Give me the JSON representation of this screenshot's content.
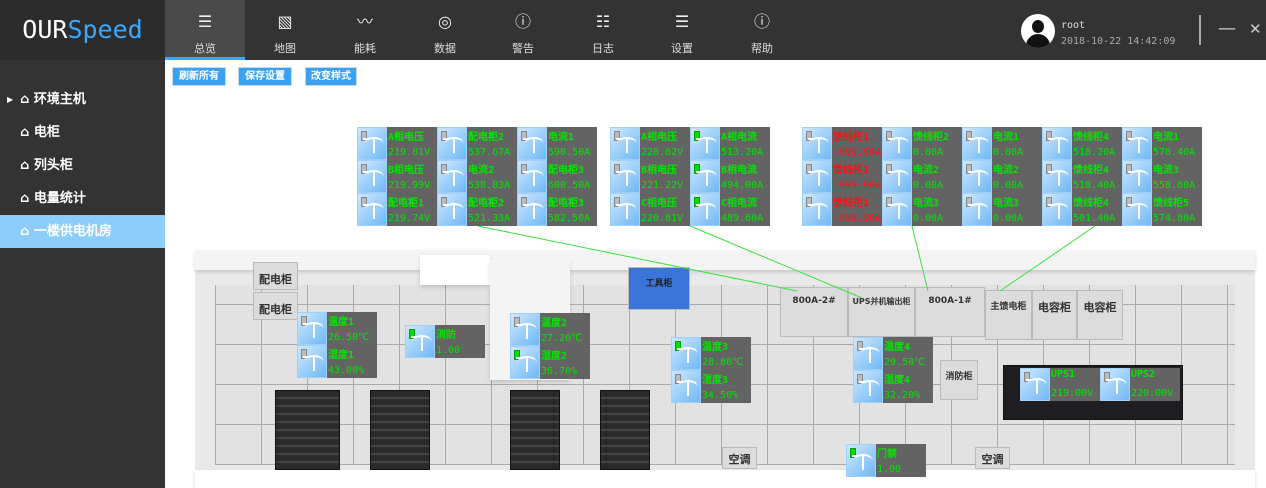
{
  "app": {
    "logo_a": "OUR",
    "logo_b": "Speed"
  },
  "nav": [
    {
      "label": "总览",
      "icon": "list-icon"
    },
    {
      "label": "地图",
      "icon": "map-icon"
    },
    {
      "label": "能耗",
      "icon": "pulse-icon"
    },
    {
      "label": "数据",
      "icon": "gauge-icon"
    },
    {
      "label": "警告",
      "icon": "alert-icon"
    },
    {
      "label": "日志",
      "icon": "log-icon"
    },
    {
      "label": "设置",
      "icon": "sliders-icon"
    },
    {
      "label": "帮助",
      "icon": "info-icon"
    }
  ],
  "user": {
    "name": "root",
    "datetime": "2018-10-22 14:42:09",
    "minimize": "—",
    "close": "✕"
  },
  "sidebar": [
    {
      "label": "环境主机",
      "arrow": "▶"
    },
    {
      "label": "电柜"
    },
    {
      "label": "列头柜"
    },
    {
      "label": "电量统计"
    },
    {
      "label": "一楼供电机房"
    }
  ],
  "home_icon": "⌂",
  "toolbar": {
    "refresh": "刷新所有",
    "save": "保存设置",
    "style": "改变样式"
  },
  "colors": {
    "accent": "#3aa7ff",
    "value_ok": "#00e600",
    "value_alarm": "#ff1010",
    "indicator_on": "#00e000"
  },
  "panels": [
    {
      "cols": 3,
      "tiles": [
        {
          "name": "A相电压",
          "value": "219.81V"
        },
        {
          "name": "配电柜2",
          "value": "537.67A"
        },
        {
          "name": "电流1",
          "value": "590.50A"
        },
        {
          "name": "B相电压",
          "value": "219.99V"
        },
        {
          "name": "电流2",
          "value": "538.83A"
        },
        {
          "name": "配电柜3",
          "value": "600.50A"
        },
        {
          "name": "配电柜1",
          "value": "219.74V"
        },
        {
          "name": "配电柜2",
          "value": "521.33A"
        },
        {
          "name": "配电柜3",
          "value": "582.50A"
        }
      ]
    },
    {
      "cols": 2,
      "tiles": [
        {
          "name": "A相电压",
          "value": "220.62V"
        },
        {
          "name": "A相电流",
          "value": "513.20A",
          "on": true
        },
        {
          "name": "B相电压",
          "value": "221.22V"
        },
        {
          "name": "B相电流",
          "value": "494.00A",
          "on": true
        },
        {
          "name": "C相电压",
          "value": "220.81V"
        },
        {
          "name": "C相电流",
          "value": "489.60A",
          "on": true
        }
      ]
    },
    {
      "cols": 5,
      "tiles": [
        {
          "name": "馈线柜1",
          "value": "-999.90A",
          "alarm": true
        },
        {
          "name": "馈线柜2",
          "value": "0.00A"
        },
        {
          "name": "电流1",
          "value": "0.00A"
        },
        {
          "name": "馈线柜4",
          "value": "518.20A"
        },
        {
          "name": "电流1",
          "value": "570.40A"
        },
        {
          "name": "馈线柜1",
          "value": "-999.90A",
          "alarm": true
        },
        {
          "name": "电流2",
          "value": "0.00A"
        },
        {
          "name": "电流2",
          "value": "0.00A"
        },
        {
          "name": "馈线柜4",
          "value": "518.40A"
        },
        {
          "name": "电流3",
          "value": "558.60A"
        },
        {
          "name": "馈线柜1",
          "value": "-999.90A",
          "alarm": true
        },
        {
          "name": "电流3",
          "value": "0.00A"
        },
        {
          "name": "电流3",
          "value": "0.00A"
        },
        {
          "name": "馈线柜4",
          "value": "501.40A"
        },
        {
          "name": "馈线柜5",
          "value": "574.80A"
        }
      ]
    }
  ],
  "sensors": [
    {
      "name": "温度1",
      "value": "26.50℃"
    },
    {
      "name": "湿度1",
      "value": "43.00%"
    },
    {
      "name": "消防",
      "value": "1.00",
      "on": true
    },
    {
      "name": "温度2",
      "value": "27.20℃"
    },
    {
      "name": "湿度2",
      "value": "36.70%",
      "on": true
    },
    {
      "name": "温度3",
      "value": "28.80℃",
      "on": true
    },
    {
      "name": "湿度3",
      "value": "34.50%"
    },
    {
      "name": "温度4",
      "value": "29.50℃"
    },
    {
      "name": "湿度4",
      "value": "32.20%"
    },
    {
      "name": "UPS1",
      "value": "219.00V"
    },
    {
      "name": "UPS2",
      "value": "220.00V"
    },
    {
      "name": "门禁",
      "value": "1.00",
      "on": true
    }
  ],
  "map_labels": [
    "配电柜",
    "配电柜",
    "工具柜",
    "800A-2#",
    "UPS并机输出柜",
    "800A-1#",
    "主馈电柜",
    "电容柜",
    "电容柜",
    "消防柜",
    "空调",
    "空调"
  ]
}
